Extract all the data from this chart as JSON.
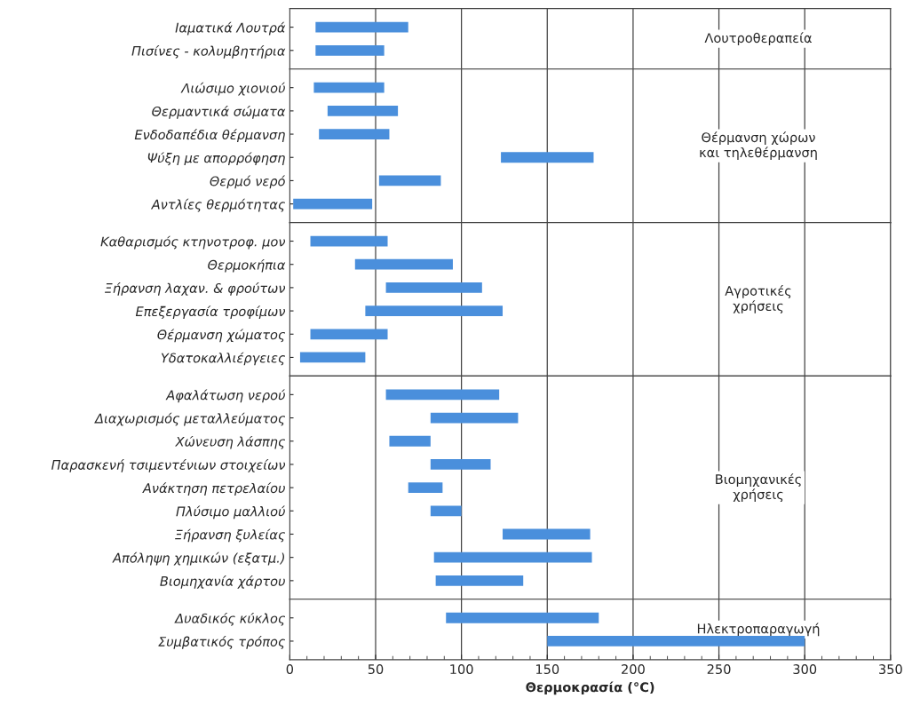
{
  "chart_data": [
    {
      "type": "bar",
      "orientation": "horizontal",
      "categories": [
        "Ιαματικά Λουτρά",
        "Πισίνες - κολυμβητήρια"
      ],
      "base": [
        15,
        15
      ],
      "values": [
        54,
        40
      ],
      "color": "#4a8fdc",
      "xlim": [
        0,
        350
      ],
      "xticks": [
        0,
        50,
        100,
        150,
        200,
        250,
        300,
        350
      ],
      "grid": "x",
      "tick_labels": "y",
      "annotations": [
        "Λουτροθεραπεία"
      ]
    },
    {
      "type": "bar",
      "orientation": "horizontal",
      "categories": [
        "Λιώσιμο χιονιού",
        "Θερμαντικά σώματα",
        "Ενδοδαπέδια θέρμανση",
        "Ψύξη με απορρόφηση",
        "Θερμό νερό",
        "Αντλίες θερμότητας"
      ],
      "base": [
        14,
        22,
        17,
        123,
        52,
        2
      ],
      "values": [
        41,
        41,
        41,
        54,
        36,
        46
      ],
      "color": "#4a8fdc",
      "xlim": [
        0,
        350
      ],
      "xticks": [
        0,
        50,
        100,
        150,
        200,
        250,
        300,
        350
      ],
      "grid": "x",
      "tick_labels": "y",
      "annotations": [
        "Θέρμανση χώρων\nκαι τηλεθέρμανση"
      ]
    },
    {
      "type": "bar",
      "orientation": "horizontal",
      "categories": [
        "Καθαρισμός κτηνοτροφ. μον",
        "Θερμοκήπια",
        "Ξήρανση λαχαν. & φρούτων",
        "Επεξεργασία τροφίμων",
        "Θέρμανση χώματος",
        "Υδατοκαλλιέργειες"
      ],
      "base": [
        12,
        38,
        56,
        44,
        12,
        6
      ],
      "values": [
        45,
        57,
        56,
        80,
        45,
        38
      ],
      "color": "#4a8fdc",
      "xlim": [
        0,
        350
      ],
      "xticks": [
        0,
        50,
        100,
        150,
        200,
        250,
        300,
        350
      ],
      "grid": "x",
      "tick_labels": "y",
      "annotations": [
        "Αγροτικές\nχρήσεις"
      ]
    },
    {
      "type": "bar",
      "orientation": "horizontal",
      "categories": [
        "Αφαλάτωση νερού",
        "Διαχωρισμός μεταλλεύματος",
        "Χώνευση λάσπης",
        "Παρασκενή τσιμεντένιων στοιχείων",
        "Ανάκτηση πετρελαίου",
        "Πλύσιμο μαλλιού",
        "Ξήρανση ξυλείας",
        "Απόληψη χημικών (εξατμ.)",
        "Βιομηχανία χάρτου"
      ],
      "base": [
        56,
        82,
        58,
        82,
        69,
        82,
        124,
        84,
        85
      ],
      "values": [
        66,
        51,
        24,
        35,
        20,
        18,
        51,
        92,
        51
      ],
      "color": "#4a8fdc",
      "xlim": [
        0,
        350
      ],
      "xticks": [
        0,
        50,
        100,
        150,
        200,
        250,
        300,
        350
      ],
      "grid": "x",
      "tick_labels": "y",
      "annotations": [
        "Βιομηχανικές\nχρήσεις"
      ]
    },
    {
      "type": "bar",
      "orientation": "horizontal",
      "categories": [
        "Δυαδικός κύκλος",
        "Συμβατικός τρόπος"
      ],
      "base": [
        91,
        150
      ],
      "values": [
        89,
        150
      ],
      "color": "#4a8fdc",
      "xlim": [
        0,
        350
      ],
      "xticks": [
        0,
        50,
        100,
        150,
        200,
        250,
        300,
        350
      ],
      "grid": "x",
      "xlabel": "Θερμοκρασία (°C)",
      "annotations": [
        "Ηλεκτροπαραγωγή"
      ]
    }
  ]
}
